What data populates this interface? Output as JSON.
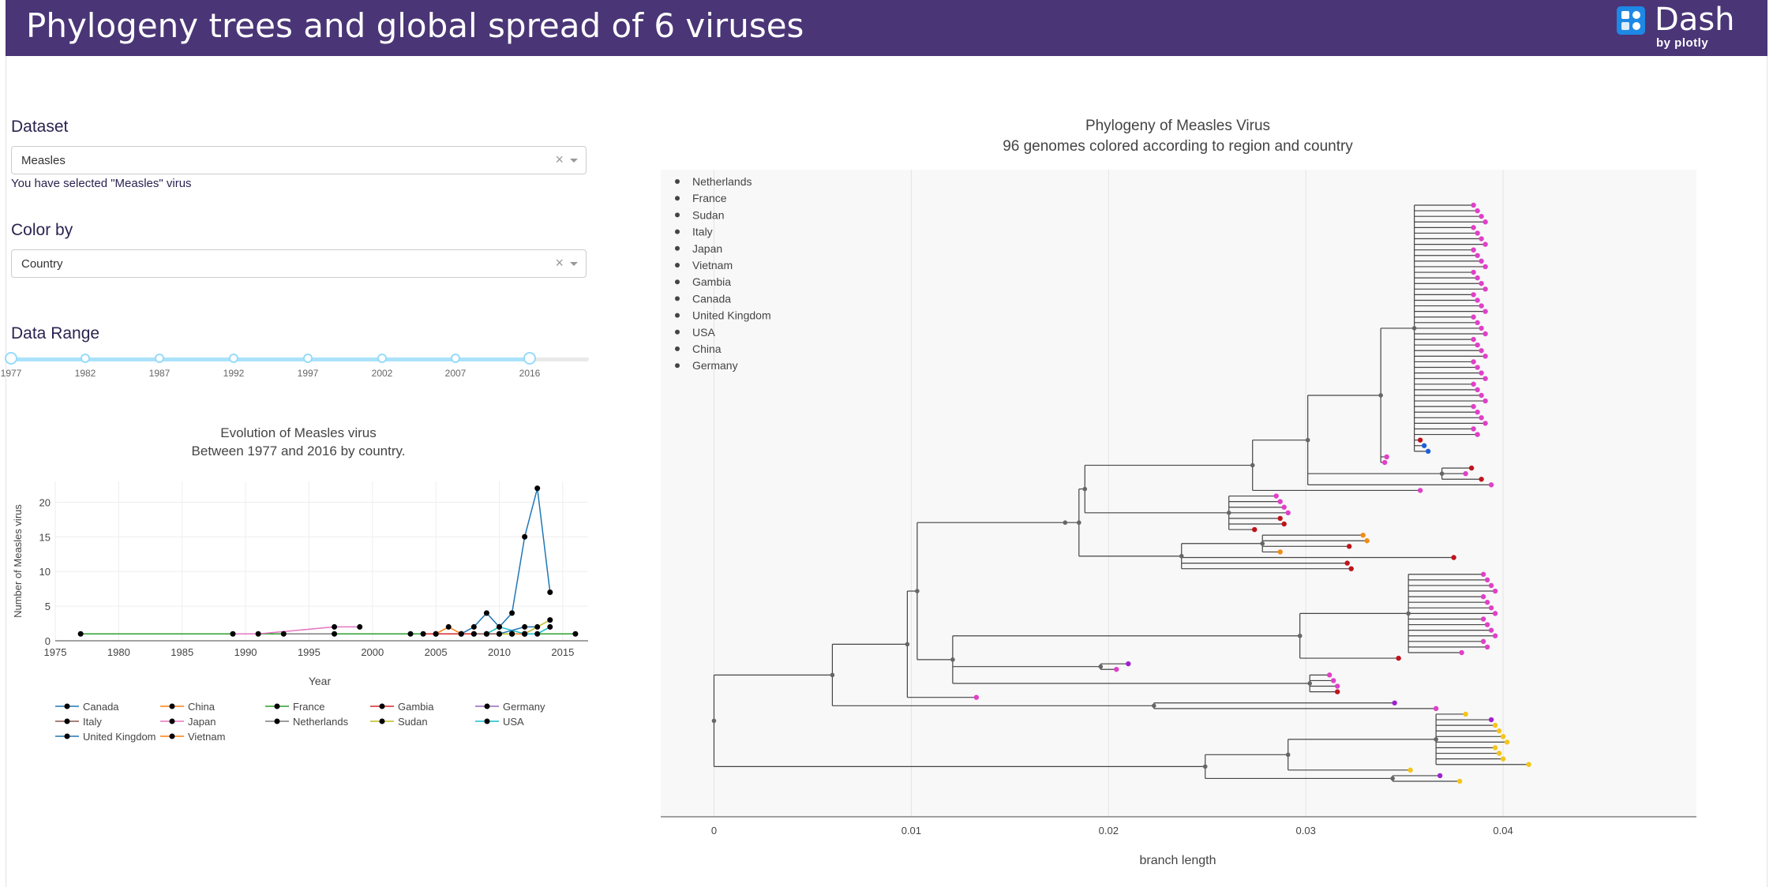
{
  "header": {
    "title": "Phylogeny trees and global spread of 6 viruses",
    "logo_text": "Dash",
    "logo_sub": "by plotly",
    "bg_color": "#4a3576"
  },
  "controls": {
    "dataset_label": "Dataset",
    "dataset_value": "Measles",
    "selected_text": "You have selected \"Measles\" virus",
    "color_by_label": "Color by",
    "color_by_value": "Country",
    "range_label": "Data Range",
    "slider_marks": [
      "1977",
      "1982",
      "1987",
      "1992",
      "1997",
      "2002",
      "2007",
      "2016"
    ],
    "slider_value": [
      1977,
      2016
    ]
  },
  "chart_data": [
    {
      "type": "line",
      "title": "Evolution of Measles virus",
      "subtitle": "Between 1977 and 2016 by country.",
      "xlabel": "Year",
      "ylabel": "Number of Measles virus",
      "xlim": [
        1975,
        2017
      ],
      "ylim": [
        0,
        23
      ],
      "x_ticks": [
        1975,
        1980,
        1985,
        1990,
        1995,
        2000,
        2005,
        2010,
        2015
      ],
      "y_ticks": [
        0,
        5,
        10,
        15,
        20
      ],
      "grid": true,
      "legend_position": "bottom",
      "series": [
        {
          "name": "Canada",
          "color": "#1f77b4",
          "x": [
            2003,
            2005,
            2007,
            2008,
            2009,
            2010,
            2011,
            2012,
            2013,
            2014
          ],
          "y": [
            1,
            1,
            1,
            2,
            4,
            2,
            4,
            15,
            22,
            7
          ]
        },
        {
          "name": "China",
          "color": "#ff7f0e",
          "x": [
            2005,
            2006,
            2007
          ],
          "y": [
            1,
            2,
            1
          ]
        },
        {
          "name": "France",
          "color": "#2ca02c",
          "x": [
            1977,
            2016
          ],
          "y": [
            1,
            1
          ]
        },
        {
          "name": "Gambia",
          "color": "#d62728",
          "x": [
            2004,
            2008
          ],
          "y": [
            1,
            1
          ]
        },
        {
          "name": "Germany",
          "color": "#9467bd",
          "x": [
            2009,
            2011,
            2012
          ],
          "y": [
            1,
            1,
            1
          ]
        },
        {
          "name": "Italy",
          "color": "#8c564b",
          "x": [
            2008,
            2010
          ],
          "y": [
            1,
            1
          ]
        },
        {
          "name": "Japan",
          "color": "#e377c2",
          "x": [
            1989,
            1991,
            1997,
            1999
          ],
          "y": [
            1,
            1,
            2,
            2
          ]
        },
        {
          "name": "Netherlands",
          "color": "#7f7f7f",
          "x": [
            1993,
            1997
          ],
          "y": [
            1,
            1
          ]
        },
        {
          "name": "Sudan",
          "color": "#bcbd22",
          "x": [
            2010,
            2011,
            2012,
            2014
          ],
          "y": [
            1,
            1,
            1,
            3
          ]
        },
        {
          "name": "USA",
          "color": "#17becf",
          "x": [
            2009,
            2010,
            2012,
            2013,
            2014
          ],
          "y": [
            1,
            2,
            1,
            1,
            2
          ]
        },
        {
          "name": "United Kingdom",
          "color": "#1f77b4",
          "x": [
            2010,
            2012,
            2013
          ],
          "y": [
            1,
            2,
            2
          ]
        },
        {
          "name": "Vietnam",
          "color": "#ff7f0e",
          "x": [
            2011,
            2012
          ],
          "y": [
            1,
            1
          ]
        }
      ]
    },
    {
      "type": "scatter",
      "title": "Phylogeny of Measles Virus",
      "subtitle": "96 genomes colored according to region and country",
      "xlabel": "branch length",
      "xlim": [
        -0.0027,
        0.0498
      ],
      "x_ticks": [
        0,
        0.01,
        0.02,
        0.03,
        0.04
      ],
      "x_tick_labels": [
        "0",
        "0.01",
        "0.02",
        "0.03",
        "0.04"
      ],
      "legend_position": "top-left",
      "legend": [
        "Netherlands",
        "France",
        "Sudan",
        "Italy",
        "Japan",
        "Vietnam",
        "Gambia",
        "Canada",
        "United Kingdom",
        "USA",
        "China",
        "Germany"
      ],
      "root": 0,
      "tree": {
        "children": [
          {
            "len": 0.006,
            "children": [
              {
                "len": 0.0038,
                "children": [
                  {
                    "len": 0.0005,
                    "children": [
                      {
                        "len": 0.0075,
                        "children": [
                          {
                            "len": 0.0007,
                            "children": [
                              {
                                "len": 0.0003,
                                "children": [
                                  {
                                    "len": 0.0085,
                                    "children": [
                                      {
                                        "len": 0.0028,
                                        "children": [
                                          {
                                            "len": 0.0037,
                                            "children": [
                                              {
                                                "len": 0.0017,
                                                "children": [
                                                  {
                                                    "len": 0.003,
                                                    "leaf": "pink",
                                                    "count": 42
                                                  },
                                                  {
                                                    "len": 0.0003,
                                                    "leaf": "red"
                                                  },
                                                  {
                                                    "len": 0.0005,
                                                    "leaf": "blue",
                                                    "count": 2
                                                  }
                                                ]
                                              },
                                              {
                                                "len": 0.0003,
                                                "leaf": "pink"
                                              },
                                              {
                                                "len": 0.0002,
                                                "leaf": "pink"
                                              }
                                            ]
                                          },
                                          {
                                            "len": 0.0068,
                                            "children": [
                                              {
                                                "len": 0.0015,
                                                "leaf": "red"
                                              },
                                              {
                                                "len": 0.0012,
                                                "leaf": "pink"
                                              },
                                              {
                                                "len": 0.002,
                                                "leaf": "red"
                                              }
                                            ]
                                          },
                                          {
                                            "len": 0.0093,
                                            "leaf": "pink"
                                          }
                                        ]
                                      },
                                      {
                                        "len": 0.0085,
                                        "leaf": "pink"
                                      }
                                    ]
                                  },
                                  {
                                    "len": 0.0073,
                                    "children": [
                                      {
                                        "len": 0.0024,
                                        "leaf": "pink",
                                        "count": 4
                                      },
                                      {
                                        "len": 0.0026,
                                        "leaf": "red",
                                        "count": 2
                                      },
                                      {
                                        "len": 0.0013,
                                        "leaf": "red"
                                      }
                                    ]
                                  }
                                ]
                              },
                              {
                                "len": 0.0052,
                                "children": [
                                  {
                                    "len": 0.0041,
                                    "children": [
                                      {
                                        "len": 0.0051,
                                        "leaf": "orange",
                                        "count": 2
                                      },
                                      {
                                        "len": 0.0044,
                                        "leaf": "red"
                                      },
                                      {
                                        "len": 0.0009,
                                        "leaf": "orange"
                                      }
                                    ]
                                  },
                                  {
                                    "len": 0.0138,
                                    "leaf": "red"
                                  },
                                  {
                                    "len": 0.0084,
                                    "leaf": "red",
                                    "count": 2
                                  }
                                ]
                              }
                            ]
                          }
                        ]
                      },
                      {
                        "len": 0.0018,
                        "children": [
                          {
                            "len": 0.0176,
                            "children": [
                              {
                                "len": 0.0055,
                                "children": [
                                  {
                                    "len": 0.0038,
                                    "leaf": "pink",
                                    "count": 14
                                  },
                                  {
                                    "len": 0.0027,
                                    "leaf": "pink"
                                  }
                                ]
                              },
                              {
                                "len": 0.005,
                                "leaf": "red"
                              }
                            ]
                          },
                          {
                            "len": 0.0075,
                            "children": [
                              {
                                "len": 0.0014,
                                "leaf": "purple"
                              },
                              {
                                "len": 0.0008,
                                "leaf": "pink"
                              }
                            ]
                          },
                          {
                            "len": 0.0181,
                            "children": [
                              {
                                "len": 0.001,
                                "leaf": "pink",
                                "count": 3
                              },
                              {
                                "len": 0.0014,
                                "leaf": "red"
                              }
                            ]
                          }
                        ]
                      }
                    ]
                  },
                  {
                    "len": 0.0035,
                    "leaf": "pink"
                  }
                ]
              },
              {
                "len": 0.0163,
                "children": [
                  {
                    "len": 0.0122,
                    "leaf": "purple"
                  },
                  {
                    "len": 0.0143,
                    "leaf": "pink"
                  }
                ]
              }
            ]
          },
          {
            "len": 0.0249,
            "children": [
              {
                "len": 0.0042,
                "children": [
                  {
                    "len": 0.0075,
                    "children": [
                      {
                        "len": 0.0015,
                        "leaf": "gold"
                      },
                      {
                        "len": 0.0028,
                        "leaf": "purple"
                      },
                      {
                        "len": 0.003,
                        "leaf": "gold",
                        "count": 7
                      },
                      {
                        "len": 0.0047,
                        "leaf": "gold"
                      }
                    ]
                  },
                  {
                    "len": 0.0062,
                    "leaf": "gold"
                  }
                ]
              },
              {
                "len": 0.0095,
                "children": [
                  {
                    "len": 0.0024,
                    "leaf": "purple"
                  },
                  {
                    "len": 0.0034,
                    "leaf": "gold"
                  }
                ]
              }
            ]
          }
        ]
      }
    }
  ]
}
